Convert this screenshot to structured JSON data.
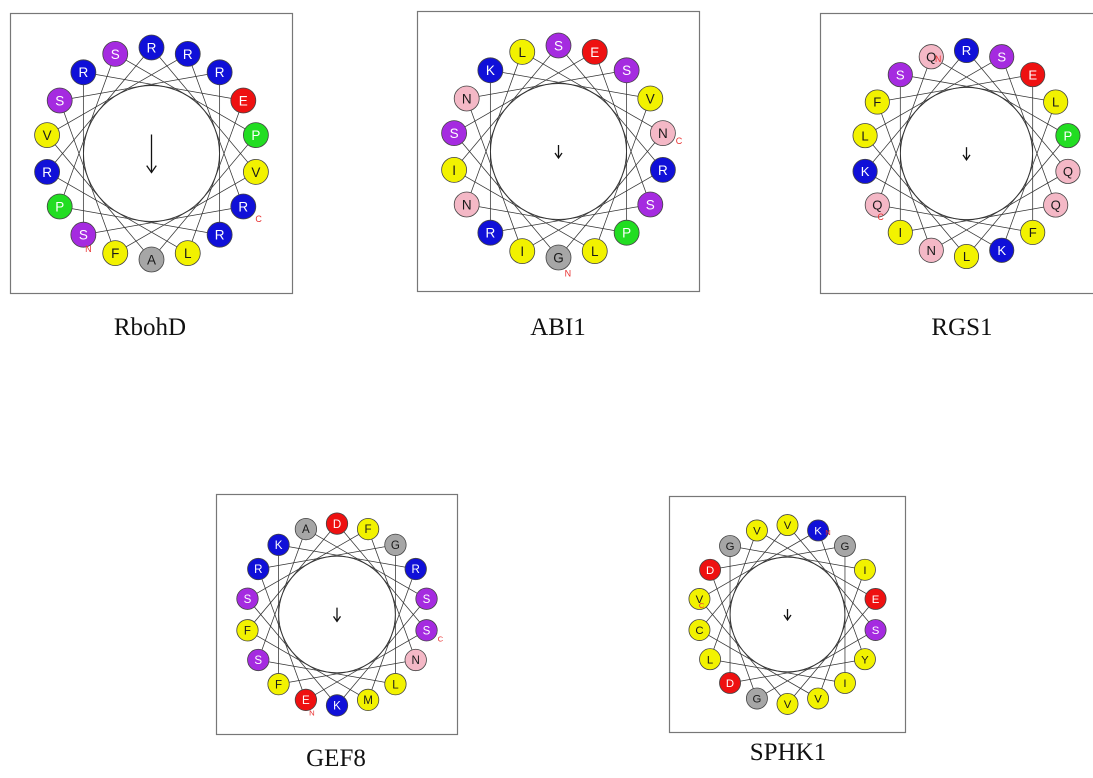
{
  "colors": {
    "blue": "#1010d8",
    "purple": "#a52be0",
    "red": "#ee1111",
    "green": "#22dd22",
    "yellow": "#f2f200",
    "pink": "#f4b8c6",
    "gray": "#a6a6a6",
    "frame": "#777777",
    "helix": "#333333",
    "terminus": "#e83030"
  },
  "wheels": [
    {
      "name": "RbohD",
      "residues": [
        {
          "letter": "R",
          "color": "blue"
        },
        {
          "letter": "R",
          "color": "blue"
        },
        {
          "letter": "E",
          "color": "red"
        },
        {
          "letter": "P",
          "color": "green"
        },
        {
          "letter": "V",
          "color": "yellow"
        },
        {
          "letter": "R",
          "color": "blue",
          "terminus": "C"
        },
        {
          "letter": "R",
          "color": "blue"
        },
        {
          "letter": "L",
          "color": "yellow"
        },
        {
          "letter": "A",
          "color": "gray"
        },
        {
          "letter": "F",
          "color": "yellow"
        },
        {
          "letter": "S",
          "color": "purple",
          "terminus": "N"
        },
        {
          "letter": "P",
          "color": "green"
        },
        {
          "letter": "R",
          "color": "blue"
        },
        {
          "letter": "V",
          "color": "yellow"
        },
        {
          "letter": "S",
          "color": "purple"
        },
        {
          "letter": "R",
          "color": "blue"
        },
        {
          "letter": "S",
          "color": "purple"
        },
        {
          "letter": "R",
          "color": "blue"
        }
      ]
    },
    {
      "name": "ABI1",
      "residues": [
        {
          "letter": "E",
          "color": "red"
        },
        {
          "letter": "S",
          "color": "purple"
        },
        {
          "letter": "V",
          "color": "yellow"
        },
        {
          "letter": "N",
          "color": "pink",
          "terminus": "C"
        },
        {
          "letter": "R",
          "color": "blue"
        },
        {
          "letter": "S",
          "color": "purple"
        },
        {
          "letter": "P",
          "color": "green"
        },
        {
          "letter": "L",
          "color": "yellow"
        },
        {
          "letter": "G",
          "color": "gray",
          "terminus": "N"
        },
        {
          "letter": "I",
          "color": "yellow"
        },
        {
          "letter": "R",
          "color": "blue"
        },
        {
          "letter": "N",
          "color": "pink"
        },
        {
          "letter": "I",
          "color": "yellow"
        },
        {
          "letter": "S",
          "color": "purple"
        },
        {
          "letter": "N",
          "color": "pink"
        },
        {
          "letter": "K",
          "color": "blue"
        },
        {
          "letter": "L",
          "color": "yellow"
        },
        {
          "letter": "S",
          "color": "purple"
        }
      ]
    },
    {
      "name": "RGS1",
      "residues": [
        {
          "letter": "S",
          "color": "purple"
        },
        {
          "letter": "E",
          "color": "red"
        },
        {
          "letter": "L",
          "color": "yellow"
        },
        {
          "letter": "P",
          "color": "green"
        },
        {
          "letter": "Q",
          "color": "pink"
        },
        {
          "letter": "Q",
          "color": "pink"
        },
        {
          "letter": "F",
          "color": "yellow"
        },
        {
          "letter": "K",
          "color": "blue"
        },
        {
          "letter": "L",
          "color": "yellow"
        },
        {
          "letter": "N",
          "color": "pink"
        },
        {
          "letter": "I",
          "color": "yellow"
        },
        {
          "letter": "Q",
          "color": "pink",
          "terminus": "C"
        },
        {
          "letter": "K",
          "color": "blue"
        },
        {
          "letter": "L",
          "color": "yellow"
        },
        {
          "letter": "F",
          "color": "yellow"
        },
        {
          "letter": "S",
          "color": "purple"
        },
        {
          "letter": "Q",
          "color": "pink",
          "terminus": "N"
        },
        {
          "letter": "R",
          "color": "blue"
        }
      ]
    },
    {
      "name": "GEF8",
      "residues": [
        {
          "letter": "F",
          "color": "yellow"
        },
        {
          "letter": "G",
          "color": "gray"
        },
        {
          "letter": "R",
          "color": "blue"
        },
        {
          "letter": "S",
          "color": "purple"
        },
        {
          "letter": "S",
          "color": "purple",
          "terminus": "C"
        },
        {
          "letter": "N",
          "color": "pink"
        },
        {
          "letter": "L",
          "color": "yellow"
        },
        {
          "letter": "M",
          "color": "yellow"
        },
        {
          "letter": "K",
          "color": "blue"
        },
        {
          "letter": "E",
          "color": "red",
          "terminus": "N"
        },
        {
          "letter": "F",
          "color": "yellow"
        },
        {
          "letter": "S",
          "color": "purple"
        },
        {
          "letter": "F",
          "color": "yellow"
        },
        {
          "letter": "S",
          "color": "purple"
        },
        {
          "letter": "R",
          "color": "blue"
        },
        {
          "letter": "K",
          "color": "blue"
        },
        {
          "letter": "A",
          "color": "gray"
        },
        {
          "letter": "D",
          "color": "red"
        }
      ]
    },
    {
      "name": "SPHK1",
      "residues": [
        {
          "letter": "K",
          "color": "blue",
          "terminus": "N"
        },
        {
          "letter": "G",
          "color": "gray"
        },
        {
          "letter": "I",
          "color": "yellow"
        },
        {
          "letter": "E",
          "color": "red"
        },
        {
          "letter": "S",
          "color": "purple"
        },
        {
          "letter": "Y",
          "color": "yellow"
        },
        {
          "letter": "I",
          "color": "yellow"
        },
        {
          "letter": "V",
          "color": "yellow"
        },
        {
          "letter": "V",
          "color": "yellow"
        },
        {
          "letter": "G",
          "color": "gray"
        },
        {
          "letter": "D",
          "color": "red"
        },
        {
          "letter": "L",
          "color": "yellow"
        },
        {
          "letter": "C",
          "color": "yellow"
        },
        {
          "letter": "V",
          "color": "yellow",
          "terminus": "C"
        },
        {
          "letter": "D",
          "color": "red"
        },
        {
          "letter": "G",
          "color": "gray"
        },
        {
          "letter": "V",
          "color": "yellow"
        },
        {
          "letter": "V",
          "color": "yellow"
        }
      ]
    }
  ]
}
